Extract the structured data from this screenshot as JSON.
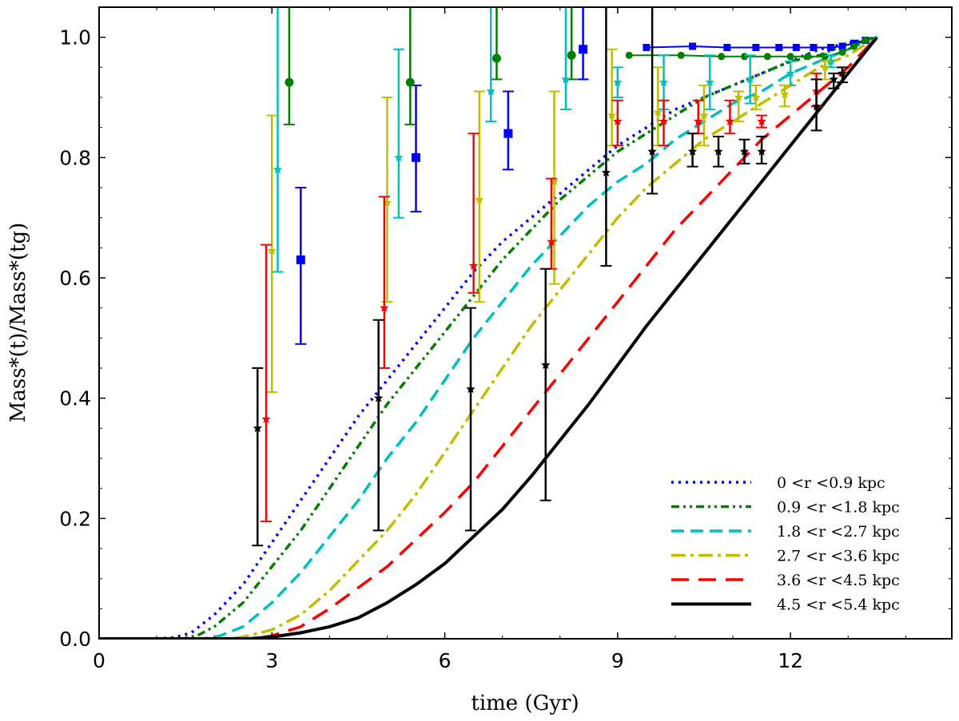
{
  "chart_data": {
    "type": "line",
    "title": "",
    "xlabel": "time (Gyr)",
    "ylabel": "Mass*(t)/Mass*(tg)",
    "xlim": [
      0,
      14.8
    ],
    "ylim": [
      0,
      1.05
    ],
    "x_ticks": [
      0,
      3,
      6,
      9,
      12
    ],
    "y_ticks": [
      0.0,
      0.2,
      0.4,
      0.6,
      0.8,
      1.0
    ],
    "x_tick_labels": [
      "0",
      "3",
      "6",
      "9",
      "12"
    ],
    "y_tick_labels": [
      "0.0",
      "0.2",
      "0.4",
      "0.6",
      "0.8",
      "1.0"
    ],
    "legend_position": "lower-right",
    "series": [
      {
        "name": "0 <r <0.9 kpc",
        "color": "#0000ff",
        "dash": "dotted",
        "curve": [
          [
            0.0,
            0.0
          ],
          [
            1.0,
            0.0
          ],
          [
            1.3,
            0.002
          ],
          [
            1.6,
            0.01
          ],
          [
            2.0,
            0.04
          ],
          [
            2.5,
            0.09
          ],
          [
            3.0,
            0.16
          ],
          [
            3.5,
            0.23
          ],
          [
            4.0,
            0.3
          ],
          [
            4.5,
            0.37
          ],
          [
            5.0,
            0.43
          ],
          [
            5.5,
            0.49
          ],
          [
            6.0,
            0.55
          ],
          [
            6.5,
            0.61
          ],
          [
            7.0,
            0.66
          ],
          [
            7.5,
            0.7
          ],
          [
            8.0,
            0.74
          ],
          [
            8.5,
            0.78
          ],
          [
            9.0,
            0.82
          ],
          [
            9.5,
            0.85
          ],
          [
            10.0,
            0.88
          ],
          [
            10.5,
            0.9
          ],
          [
            11.0,
            0.92
          ],
          [
            11.5,
            0.94
          ],
          [
            12.0,
            0.96
          ],
          [
            12.5,
            0.98
          ],
          [
            13.0,
            0.99
          ],
          [
            13.5,
            1.0
          ]
        ],
        "errorbars": [
          {
            "x": 3.5,
            "y": 0.63,
            "lo": 0.49,
            "hi": 0.75,
            "marker": "square"
          },
          {
            "x": 5.5,
            "y": 0.8,
            "lo": 0.71,
            "hi": 0.92,
            "marker": "square"
          },
          {
            "x": 7.1,
            "y": 0.84,
            "lo": 0.78,
            "hi": 0.91,
            "marker": "square"
          },
          {
            "x": 8.4,
            "y": 0.98,
            "lo": 0.93,
            "hi": 1.1,
            "marker": "square"
          }
        ],
        "plateau": [
          [
            9.5,
            0.983
          ],
          [
            10.3,
            0.985
          ],
          [
            10.9,
            0.983
          ],
          [
            11.4,
            0.983
          ],
          [
            11.8,
            0.983
          ],
          [
            12.1,
            0.983
          ],
          [
            12.4,
            0.983
          ],
          [
            12.7,
            0.983
          ],
          [
            12.9,
            0.985
          ],
          [
            13.1,
            0.99
          ],
          [
            13.3,
            0.995
          ],
          [
            13.5,
            1.0
          ]
        ]
      },
      {
        "name": "0.9 <r <1.8 kpc",
        "color": "#007f00",
        "dash": "dashdotdot",
        "curve": [
          [
            0.0,
            0.0
          ],
          [
            1.4,
            0.0
          ],
          [
            1.7,
            0.005
          ],
          [
            2.0,
            0.02
          ],
          [
            2.5,
            0.06
          ],
          [
            3.0,
            0.12
          ],
          [
            3.5,
            0.18
          ],
          [
            4.0,
            0.25
          ],
          [
            4.5,
            0.32
          ],
          [
            5.0,
            0.39
          ],
          [
            5.5,
            0.45
          ],
          [
            6.0,
            0.51
          ],
          [
            6.5,
            0.57
          ],
          [
            7.0,
            0.63
          ],
          [
            7.5,
            0.68
          ],
          [
            8.0,
            0.73
          ],
          [
            8.5,
            0.77
          ],
          [
            9.0,
            0.81
          ],
          [
            9.5,
            0.84
          ],
          [
            10.0,
            0.87
          ],
          [
            10.5,
            0.9
          ],
          [
            11.0,
            0.92
          ],
          [
            11.5,
            0.94
          ],
          [
            12.0,
            0.96
          ],
          [
            12.5,
            0.97
          ],
          [
            13.0,
            0.99
          ],
          [
            13.5,
            1.0
          ]
        ],
        "errorbars": [
          {
            "x": 3.3,
            "y": 0.925,
            "lo": 0.855,
            "hi": 1.1,
            "marker": "circle"
          },
          {
            "x": 5.4,
            "y": 0.925,
            "lo": 0.855,
            "hi": 1.1,
            "marker": "circle"
          },
          {
            "x": 6.9,
            "y": 0.965,
            "lo": 0.93,
            "hi": 1.1,
            "marker": "circle"
          },
          {
            "x": 8.2,
            "y": 0.97,
            "lo": 0.93,
            "hi": 1.1,
            "marker": "circle"
          }
        ],
        "plateau": [
          [
            9.2,
            0.97
          ],
          [
            10.1,
            0.97
          ],
          [
            10.8,
            0.968
          ],
          [
            11.2,
            0.968
          ],
          [
            11.6,
            0.968
          ],
          [
            12.0,
            0.968
          ],
          [
            12.3,
            0.968
          ],
          [
            12.6,
            0.968
          ],
          [
            12.9,
            0.975
          ],
          [
            13.1,
            0.985
          ],
          [
            13.3,
            0.995
          ],
          [
            13.5,
            1.0
          ]
        ]
      },
      {
        "name": "1.8 <r <2.7 kpc",
        "color": "#00bfbf",
        "dash": "dashed",
        "curve": [
          [
            0.0,
            0.0
          ],
          [
            1.8,
            0.0
          ],
          [
            2.1,
            0.005
          ],
          [
            2.5,
            0.02
          ],
          [
            3.0,
            0.06
          ],
          [
            3.5,
            0.11
          ],
          [
            4.0,
            0.17
          ],
          [
            4.5,
            0.23
          ],
          [
            5.0,
            0.3
          ],
          [
            5.5,
            0.36
          ],
          [
            6.0,
            0.43
          ],
          [
            6.5,
            0.5
          ],
          [
            7.0,
            0.56
          ],
          [
            7.5,
            0.62
          ],
          [
            8.0,
            0.67
          ],
          [
            8.5,
            0.72
          ],
          [
            9.0,
            0.76
          ],
          [
            9.5,
            0.79
          ],
          [
            10.0,
            0.83
          ],
          [
            10.5,
            0.86
          ],
          [
            11.0,
            0.89
          ],
          [
            11.5,
            0.91
          ],
          [
            12.0,
            0.94
          ],
          [
            12.5,
            0.96
          ],
          [
            13.0,
            0.98
          ],
          [
            13.5,
            1.0
          ]
        ],
        "errorbars": [
          {
            "x": 3.1,
            "y": 0.78,
            "lo": 0.61,
            "hi": 1.1
          },
          {
            "x": 5.2,
            "y": 0.8,
            "lo": 0.7,
            "hi": 0.98
          },
          {
            "x": 6.8,
            "y": 0.91,
            "lo": 0.86,
            "hi": 1.1
          },
          {
            "x": 8.1,
            "y": 0.93,
            "lo": 0.88,
            "hi": 1.1
          },
          {
            "x": 9.0,
            "y": 0.925,
            "lo": 0.9,
            "hi": 0.95
          },
          {
            "x": 9.8,
            "y": 0.925,
            "lo": 0.88,
            "hi": 0.97
          },
          {
            "x": 10.6,
            "y": 0.925,
            "lo": 0.88,
            "hi": 0.97
          },
          {
            "x": 11.3,
            "y": 0.93,
            "lo": 0.89,
            "hi": 0.97
          },
          {
            "x": 12.0,
            "y": 0.94,
            "lo": 0.92,
            "hi": 0.96
          },
          {
            "x": 12.7,
            "y": 0.96,
            "lo": 0.95,
            "hi": 0.97
          }
        ]
      },
      {
        "name": "2.7 <r <3.6 kpc",
        "color": "#bfbf00",
        "dash": "dashdot",
        "curve": [
          [
            0.0,
            0.0
          ],
          [
            2.3,
            0.0
          ],
          [
            2.6,
            0.005
          ],
          [
            3.0,
            0.015
          ],
          [
            3.5,
            0.04
          ],
          [
            4.0,
            0.08
          ],
          [
            4.5,
            0.13
          ],
          [
            5.0,
            0.18
          ],
          [
            5.5,
            0.24
          ],
          [
            6.0,
            0.31
          ],
          [
            6.5,
            0.38
          ],
          [
            7.0,
            0.45
          ],
          [
            7.5,
            0.52
          ],
          [
            8.0,
            0.58
          ],
          [
            8.5,
            0.64
          ],
          [
            9.0,
            0.7
          ],
          [
            9.5,
            0.75
          ],
          [
            10.0,
            0.79
          ],
          [
            10.5,
            0.83
          ],
          [
            11.0,
            0.86
          ],
          [
            11.5,
            0.89
          ],
          [
            12.0,
            0.92
          ],
          [
            12.5,
            0.95
          ],
          [
            13.0,
            0.97
          ],
          [
            13.5,
            1.0
          ]
        ],
        "errorbars": [
          {
            "x": 3.0,
            "y": 0.645,
            "lo": 0.41,
            "hi": 0.87
          },
          {
            "x": 5.0,
            "y": 0.725,
            "lo": 0.56,
            "hi": 0.9
          },
          {
            "x": 6.6,
            "y": 0.73,
            "lo": 0.56,
            "hi": 0.91
          },
          {
            "x": 7.9,
            "y": 0.76,
            "lo": 0.59,
            "hi": 0.91
          },
          {
            "x": 8.9,
            "y": 0.87,
            "lo": 0.82,
            "hi": 0.98
          },
          {
            "x": 9.7,
            "y": 0.875,
            "lo": 0.82,
            "hi": 0.95
          },
          {
            "x": 10.5,
            "y": 0.87,
            "lo": 0.82,
            "hi": 0.92
          },
          {
            "x": 11.1,
            "y": 0.9,
            "lo": 0.86,
            "hi": 0.91
          },
          {
            "x": 11.4,
            "y": 0.9,
            "lo": 0.88,
            "hi": 0.92
          },
          {
            "x": 11.9,
            "y": 0.905,
            "lo": 0.885,
            "hi": 0.92
          },
          {
            "x": 12.6,
            "y": 0.95,
            "lo": 0.93,
            "hi": 0.96
          }
        ]
      },
      {
        "name": "3.6 <r <4.5 kpc",
        "color": "#ff0000",
        "dash": "longdash",
        "curve": [
          [
            0.0,
            0.0
          ],
          [
            2.7,
            0.0
          ],
          [
            3.0,
            0.005
          ],
          [
            3.5,
            0.02
          ],
          [
            4.0,
            0.05
          ],
          [
            4.5,
            0.085
          ],
          [
            5.0,
            0.12
          ],
          [
            5.5,
            0.165
          ],
          [
            6.0,
            0.21
          ],
          [
            6.5,
            0.26
          ],
          [
            7.0,
            0.32
          ],
          [
            7.5,
            0.38
          ],
          [
            8.0,
            0.44
          ],
          [
            8.5,
            0.5
          ],
          [
            9.0,
            0.56
          ],
          [
            9.5,
            0.62
          ],
          [
            10.0,
            0.68
          ],
          [
            10.5,
            0.73
          ],
          [
            11.0,
            0.78
          ],
          [
            11.5,
            0.83
          ],
          [
            12.0,
            0.87
          ],
          [
            12.5,
            0.91
          ],
          [
            13.0,
            0.95
          ],
          [
            13.5,
            1.0
          ]
        ],
        "errorbars": [
          {
            "x": 2.9,
            "y": 0.365,
            "lo": 0.195,
            "hi": 0.655
          },
          {
            "x": 4.95,
            "y": 0.55,
            "lo": 0.45,
            "hi": 0.735
          },
          {
            "x": 6.5,
            "y": 0.62,
            "lo": 0.575,
            "hi": 0.84
          },
          {
            "x": 7.85,
            "y": 0.66,
            "lo": 0.615,
            "hi": 0.765
          },
          {
            "x": 9.0,
            "y": 0.86,
            "lo": 0.82,
            "hi": 0.895
          },
          {
            "x": 9.8,
            "y": 0.86,
            "lo": 0.82,
            "hi": 0.895
          },
          {
            "x": 10.4,
            "y": 0.86,
            "lo": 0.84,
            "hi": 0.895
          },
          {
            "x": 10.95,
            "y": 0.86,
            "lo": 0.84,
            "hi": 0.895
          },
          {
            "x": 11.5,
            "y": 0.86,
            "lo": 0.85,
            "hi": 0.87
          },
          {
            "x": 12.45,
            "y": 0.91,
            "lo": 0.885,
            "hi": 0.94
          }
        ]
      },
      {
        "name": "4.5 <r <5.4 kpc",
        "color": "#000000",
        "dash": "solid",
        "curve": [
          [
            0.0,
            0.0
          ],
          [
            2.6,
            0.0
          ],
          [
            3.0,
            0.003
          ],
          [
            3.5,
            0.01
          ],
          [
            4.0,
            0.02
          ],
          [
            4.5,
            0.035
          ],
          [
            5.0,
            0.06
          ],
          [
            5.5,
            0.09
          ],
          [
            6.0,
            0.125
          ],
          [
            6.5,
            0.17
          ],
          [
            7.0,
            0.215
          ],
          [
            7.5,
            0.27
          ],
          [
            8.0,
            0.33
          ],
          [
            8.5,
            0.39
          ],
          [
            9.0,
            0.455
          ],
          [
            9.5,
            0.52
          ],
          [
            10.0,
            0.58
          ],
          [
            10.5,
            0.64
          ],
          [
            11.0,
            0.7
          ],
          [
            11.5,
            0.76
          ],
          [
            12.0,
            0.82
          ],
          [
            12.5,
            0.88
          ],
          [
            13.0,
            0.94
          ],
          [
            13.5,
            1.0
          ]
        ],
        "errorbars": [
          {
            "x": 2.75,
            "y": 0.35,
            "lo": 0.155,
            "hi": 0.45
          },
          {
            "x": 4.85,
            "y": 0.4,
            "lo": 0.18,
            "hi": 0.53
          },
          {
            "x": 6.45,
            "y": 0.415,
            "lo": 0.18,
            "hi": 0.55
          },
          {
            "x": 7.75,
            "y": 0.455,
            "lo": 0.23,
            "hi": 0.615
          },
          {
            "x": 8.8,
            "y": 0.775,
            "lo": 0.62,
            "hi": 1.1
          },
          {
            "x": 9.6,
            "y": 0.81,
            "lo": 0.74,
            "hi": 1.1
          },
          {
            "x": 10.3,
            "y": 0.81,
            "lo": 0.785,
            "hi": 0.84
          },
          {
            "x": 10.75,
            "y": 0.81,
            "lo": 0.785,
            "hi": 0.835
          },
          {
            "x": 11.2,
            "y": 0.81,
            "lo": 0.79,
            "hi": 0.83
          },
          {
            "x": 11.5,
            "y": 0.81,
            "lo": 0.79,
            "hi": 0.835
          },
          {
            "x": 12.45,
            "y": 0.885,
            "lo": 0.845,
            "hi": 0.93
          },
          {
            "x": 12.75,
            "y": 0.93,
            "lo": 0.915,
            "hi": 0.94
          },
          {
            "x": 12.9,
            "y": 0.94,
            "lo": 0.925,
            "hi": 0.95
          }
        ]
      }
    ]
  }
}
